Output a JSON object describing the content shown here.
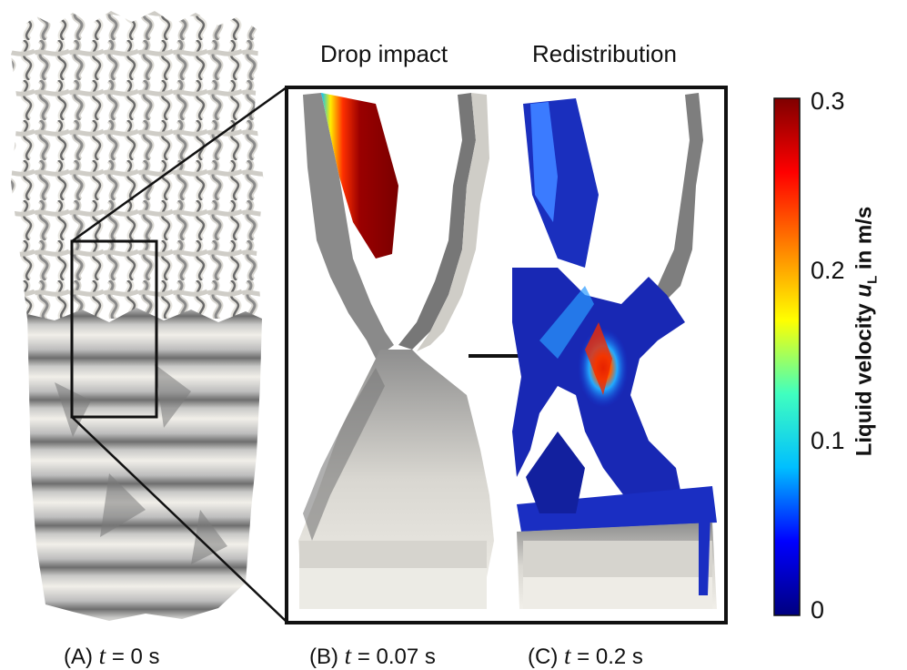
{
  "panel_titles": {
    "drop_impact": "Drop impact",
    "redistribution": "Redistribution"
  },
  "captions": {
    "a_prefix": "(A)",
    "a_var": "t",
    "a_rest": " = 0 s",
    "b_prefix": "(B)",
    "b_var": "t",
    "b_rest": " = 0.07 s",
    "c_prefix": "(C)",
    "c_var": "t",
    "c_rest": " = 0.2 s"
  },
  "colorbar": {
    "label_prefix": "Liquid velocity ",
    "label_var": "u",
    "label_sub": "L",
    "label_suffix": " in m/s",
    "ticks": [
      "0.3",
      "0.2",
      "0.1",
      "0"
    ],
    "colormap": [
      "#00007f",
      "#0000ff",
      "#00bfff",
      "#40ffbf",
      "#ffff00",
      "#ff8000",
      "#ff0000",
      "#7f0000"
    ]
  },
  "colors": {
    "surface_light": "#eeece6",
    "surface_dark": "#7c7c7c",
    "frame": "#111111"
  }
}
